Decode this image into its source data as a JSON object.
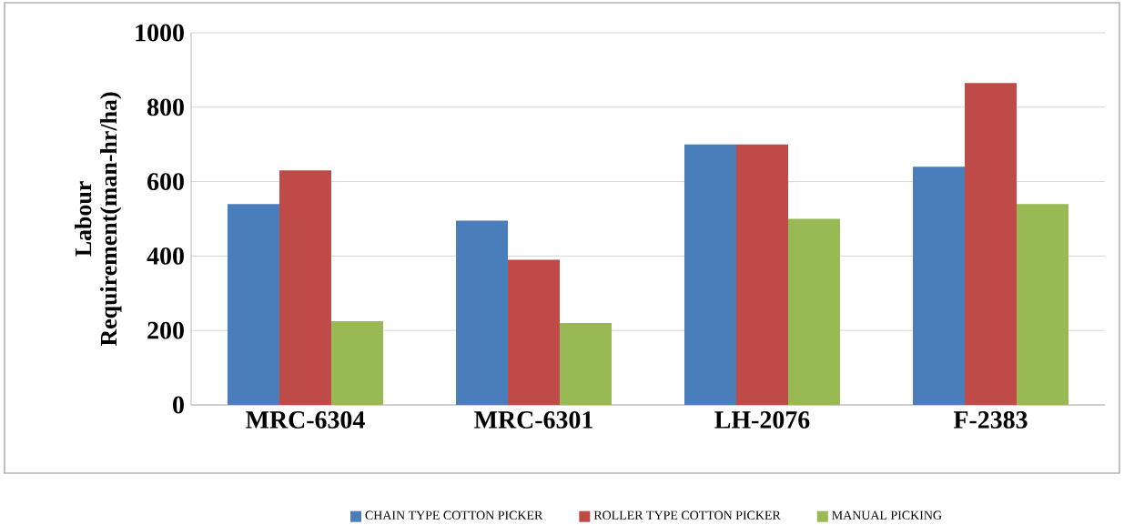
{
  "chart_data": {
    "type": "bar",
    "ylabel": "Labour Requirement(man-hr/ha)",
    "categories": [
      "MRC-6304",
      "MRC-6301",
      "LH-2076",
      "F-2383"
    ],
    "series": [
      {
        "name": "CHAIN TYPE COTTON PICKER",
        "color": "#4a7ebb",
        "values": [
          540,
          495,
          700,
          640
        ]
      },
      {
        "name": "ROLLER TYPE COTTON PICKER",
        "color": "#be4b48",
        "values": [
          630,
          390,
          700,
          865
        ]
      },
      {
        "name": "MANUAL PICKING",
        "color": "#98b954",
        "values": [
          225,
          220,
          500,
          540
        ]
      }
    ],
    "ylim": [
      0,
      1000
    ],
    "yticks": [
      0,
      200,
      400,
      600,
      800,
      1000
    ],
    "grid": "y",
    "legend": "bottom"
  }
}
